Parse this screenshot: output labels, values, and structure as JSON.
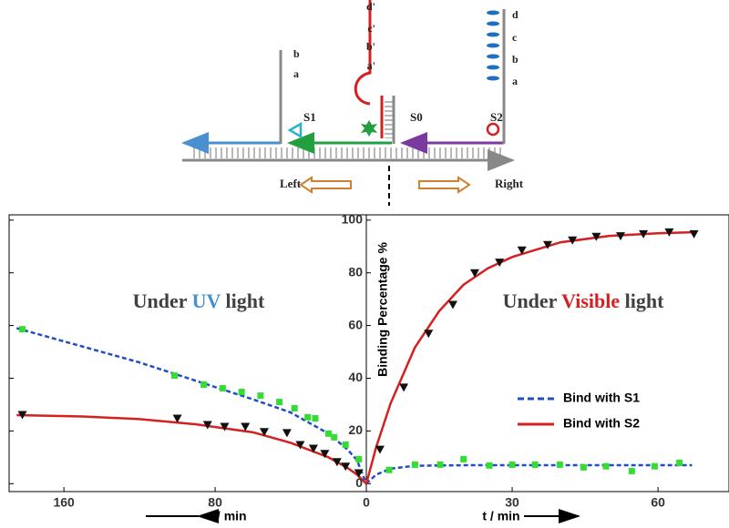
{
  "schematic": {
    "labels": [
      "d'",
      "c'",
      "b'",
      "a'",
      "b",
      "a",
      "S1",
      "S0",
      "S2",
      "d",
      "c",
      "b",
      "a",
      "Left",
      "Right"
    ]
  },
  "chart_data": [
    {
      "type": "line",
      "xlim": [
        189,
        0
      ],
      "ylim": [
        -3,
        102
      ],
      "xticks": [
        160,
        80
      ],
      "yticks": [
        0,
        20,
        40,
        60,
        80,
        100
      ],
      "y_tick_labels": false,
      "x_label": "t / min",
      "annotation": [
        {
          "text": "Under ",
          "color": "#404040"
        },
        {
          "text": "UV",
          "color": "#4a8fd0"
        },
        {
          "text": " light",
          "color": "#404040"
        }
      ],
      "series": [
        {
          "name": "Bind with S1",
          "color": "#1f4fc0",
          "line": "dashed",
          "x": [
            185,
            150,
            120,
            90,
            60,
            40,
            20,
            10,
            5,
            0
          ],
          "values": [
            59,
            52,
            46,
            39,
            32,
            27,
            19,
            13,
            9,
            0
          ]
        },
        {
          "name": "Bind with S2",
          "color": "#d42020",
          "line": "solid",
          "x": [
            185,
            150,
            120,
            90,
            60,
            40,
            20,
            10,
            5,
            0
          ],
          "values": [
            26,
            25.5,
            24.5,
            22.5,
            19.5,
            15.5,
            10,
            6,
            3.5,
            0
          ]
        },
        {
          "color": "#33dd33",
          "marker": "square",
          "x": [
            182,
            101.5,
            86,
            76,
            66,
            56,
            46,
            38,
            31,
            27,
            20,
            17,
            11,
            4
          ],
          "values": [
            58.6,
            41,
            37.6,
            36.2,
            34.8,
            33.4,
            31,
            28.6,
            25.2,
            24.8,
            19,
            17.6,
            14.8,
            9.3
          ]
        },
        {
          "color": "#111111",
          "marker": "triangle",
          "x": [
            182,
            100,
            84,
            75,
            64,
            54,
            42,
            35,
            28,
            22,
            15.5,
            11,
            4
          ],
          "values": [
            26.2,
            24.8,
            22.4,
            21.7,
            21.7,
            19.7,
            19.3,
            14.8,
            13.4,
            11.4,
            8.3,
            6.6,
            4.1
          ]
        }
      ]
    },
    {
      "type": "line",
      "xlim": [
        0,
        74.6
      ],
      "ylim": [
        -3,
        102
      ],
      "xticks": [
        0,
        30,
        60
      ],
      "yticks": [
        0,
        20,
        40,
        60,
        80,
        100
      ],
      "y_tick_labels": true,
      "x_label": "t / min",
      "y_label": "Binding Percentage %",
      "legend": "right",
      "annotation": [
        {
          "text": "Under ",
          "color": "#404040"
        },
        {
          "text": "Visible",
          "color": "#d42020"
        },
        {
          "text": " light",
          "color": "#404040"
        }
      ],
      "series": [
        {
          "name": "Bind with S1",
          "color": "#1f4fc0",
          "line": "dashed",
          "x": [
            0,
            2,
            5,
            10,
            20,
            40,
            67
          ],
          "values": [
            0,
            3.4,
            5.7,
            6.8,
            7,
            7,
            7
          ]
        },
        {
          "name": "Bind with S2",
          "color": "#d42020",
          "line": "solid",
          "x": [
            0,
            2,
            5,
            10,
            15,
            20,
            25,
            30,
            40,
            50,
            60,
            67
          ],
          "values": [
            0,
            13.7,
            30.5,
            51.7,
            65.5,
            75.5,
            81.7,
            86,
            91.6,
            94,
            95,
            95.4
          ]
        },
        {
          "color": "#33dd33",
          "marker": "square",
          "x": [
            4.7,
            10,
            15.2,
            20,
            25.3,
            30,
            34.7,
            39.8,
            44.7,
            49.3,
            54.6,
            59.3,
            64.4
          ],
          "values": [
            5.2,
            7.2,
            7.2,
            9.3,
            6.9,
            7.2,
            7.2,
            7.2,
            6.2,
            6.6,
            4.8,
            6.6,
            7.9
          ]
        },
        {
          "color": "#111111",
          "marker": "triangle",
          "x": [
            2.8,
            7.7,
            12.8,
            17.8,
            22.3,
            27.4,
            32,
            37.3,
            42.4,
            47.3,
            52.3,
            57,
            62.3,
            67.4
          ],
          "values": [
            13,
            36.6,
            57,
            68,
            80,
            84,
            88.6,
            90.7,
            92.4,
            93.8,
            94,
            94.8,
            95.5,
            94.8
          ]
        }
      ]
    }
  ]
}
